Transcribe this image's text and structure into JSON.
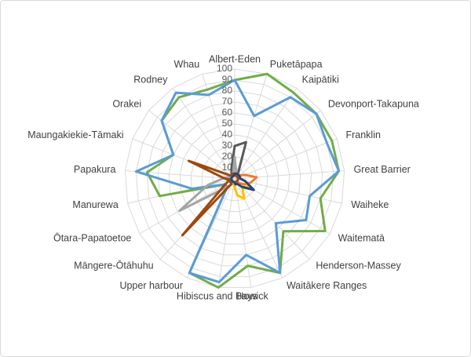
{
  "chart_data": {
    "type": "radar",
    "categories": [
      "Albert-Eden",
      "Puketāpapa",
      "Kaipātiki",
      "Devonport-Takapuna",
      "Franklin",
      "Great Barrier",
      "Waiheke",
      "Waitematā",
      "Henderson-Massey",
      "Waitākere Ranges",
      "Howick",
      "Hibiscus and Bays",
      "Upper harbour",
      "Māngere-Ōtāhuhu",
      "Ōtara-Papatoetoe",
      "Manurewa",
      "Papakura",
      "Maungakiekie-Tāmaki",
      "Orakei",
      "Rodney",
      "Whau"
    ],
    "ylim": [
      0,
      100
    ],
    "yticks": [
      10,
      20,
      30,
      40,
      50,
      60,
      70,
      80,
      90,
      100
    ],
    "grid": true,
    "series": [
      {
        "color": "#70ad47",
        "values": [
          90,
          100,
          95,
          95,
          95,
          95,
          80,
          95,
          65,
          95,
          80,
          100,
          95,
          10,
          10,
          70,
          80,
          60,
          85,
          90,
          85
        ]
      },
      {
        "color": "#5b9bd5",
        "values": [
          90,
          60,
          90,
          95,
          90,
          95,
          70,
          75,
          55,
          95,
          70,
          95,
          95,
          10,
          10,
          40,
          90,
          60,
          85,
          95,
          80
        ]
      },
      {
        "color": "#595959",
        "values": [
          30,
          35,
          5,
          3,
          3,
          3,
          3,
          3,
          3,
          3,
          3,
          3,
          3,
          5,
          5,
          5,
          5,
          5,
          5,
          5,
          10
        ]
      },
      {
        "color": "#a5a5a5",
        "values": [
          20,
          5,
          3,
          3,
          3,
          3,
          3,
          3,
          3,
          3,
          3,
          3,
          5,
          10,
          58,
          25,
          10,
          5,
          5,
          5,
          5
        ]
      },
      {
        "color": "#9e480e",
        "values": [
          5,
          3,
          3,
          3,
          3,
          3,
          3,
          3,
          3,
          3,
          3,
          3,
          3,
          70,
          10,
          5,
          10,
          45,
          5,
          5,
          5
        ]
      },
      {
        "color": "#ed7d31",
        "values": [
          5,
          5,
          5,
          5,
          10,
          20,
          15,
          10,
          5,
          5,
          5,
          3,
          3,
          3,
          3,
          3,
          3,
          3,
          3,
          3,
          3
        ]
      },
      {
        "color": "#ffc000",
        "values": [
          5,
          5,
          5,
          5,
          5,
          5,
          10,
          15,
          10,
          20,
          15,
          5,
          3,
          3,
          3,
          3,
          3,
          3,
          3,
          3,
          3
        ]
      },
      {
        "color": "#264478",
        "values": [
          5,
          5,
          5,
          5,
          5,
          5,
          10,
          20,
          10,
          5,
          5,
          3,
          3,
          3,
          3,
          3,
          3,
          3,
          3,
          3,
          3
        ]
      }
    ]
  }
}
